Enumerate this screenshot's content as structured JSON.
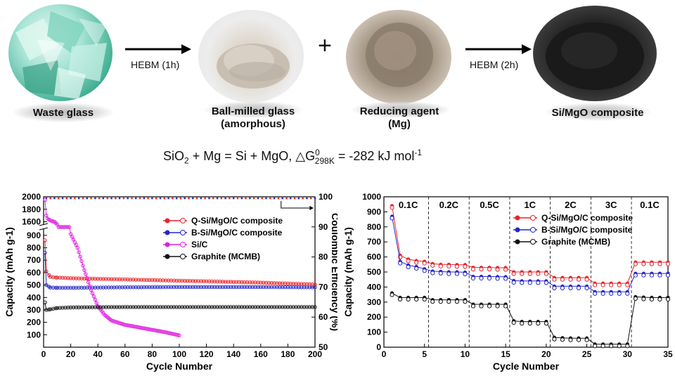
{
  "scheme": {
    "steps": [
      {
        "label_lines": [
          "Waste glass"
        ]
      },
      {
        "label_lines": [
          "Ball-milled glass",
          "(amorphous)"
        ]
      },
      {
        "label_lines": [
          "Reducing agent",
          "(Mg)"
        ]
      },
      {
        "label_lines": [
          "Si/MgO composite"
        ]
      }
    ],
    "arrow1_label": "HEBM (1h)",
    "plus_sign": "+",
    "arrow2_label": "HEBM (2h)"
  },
  "equation": {
    "part1": "SiO",
    "sub1": "2",
    "part2": " + Mg = Si + MgO, △G",
    "sup1": "0",
    "sub2": "298K",
    "part3": " = -282 kJ mol",
    "sup2": "-1"
  },
  "chart_data": [
    {
      "type": "scatter",
      "xlabel": "Cycle Number",
      "ylabel": "Capacity (mAh g-1)",
      "y2label": "Coulombic Efficiency (%)",
      "xlim": [
        0,
        200
      ],
      "xticks": [
        0,
        20,
        40,
        60,
        80,
        100,
        120,
        140,
        160,
        180,
        200
      ],
      "yticks": [
        100,
        200,
        300,
        400,
        500,
        600,
        700,
        800,
        900,
        1600,
        1800,
        2000
      ],
      "y_break": [
        950,
        1550
      ],
      "y2lim": [
        50,
        100
      ],
      "y2ticks": [
        50,
        60,
        70,
        80,
        90,
        100
      ],
      "legend_position": "middle-right",
      "series": [
        {
          "name": "Q-Si/MgO/C composite",
          "color": "#e8242a",
          "x": [
            1,
            2,
            5,
            10,
            20,
            40,
            60,
            80,
            100,
            120,
            140,
            160,
            180,
            200
          ],
          "values": [
            860,
            610,
            565,
            560,
            555,
            550,
            545,
            540,
            535,
            530,
            525,
            520,
            512,
            505
          ]
        },
        {
          "name": "B-Si/MgO/C composite",
          "color": "#2426c8",
          "x": [
            1,
            2,
            5,
            10,
            20,
            40,
            60,
            80,
            100,
            120,
            140,
            160,
            180,
            200
          ],
          "values": [
            760,
            500,
            480,
            478,
            478,
            480,
            482,
            483,
            484,
            484,
            484,
            484,
            483,
            482
          ]
        },
        {
          "name": "Si/C",
          "color": "#e020e0",
          "x": [
            1,
            2,
            3,
            5,
            8,
            10,
            14,
            18,
            20,
            25,
            30,
            35,
            40,
            45,
            50,
            60,
            70,
            80,
            90,
            100
          ],
          "values": [
            1950,
            1700,
            1650,
            1620,
            1600,
            1560,
            1500,
            1200,
            910,
            800,
            620,
            460,
            330,
            260,
            215,
            180,
            160,
            140,
            120,
            95
          ]
        },
        {
          "name": "Graphite (MCMB)",
          "color": "#111111",
          "x": [
            1,
            2,
            5,
            10,
            20,
            40,
            60,
            80,
            100,
            120,
            140,
            160,
            180,
            200
          ],
          "values": [
            360,
            300,
            305,
            315,
            320,
            322,
            323,
            323,
            323,
            323,
            323,
            323,
            323,
            323
          ]
        }
      ]
    },
    {
      "type": "line",
      "xlabel": "Cycle Number",
      "ylabel": "Capacity (mAh g-1)",
      "xlim": [
        0,
        35
      ],
      "ylim": [
        0,
        1000
      ],
      "xticks": [
        0,
        5,
        10,
        15,
        20,
        25,
        30,
        35
      ],
      "yticks": [
        0,
        100,
        200,
        300,
        400,
        500,
        600,
        700,
        800,
        900,
        1000
      ],
      "rate_labels": [
        "0.1C",
        "0.2C",
        "0.5C",
        "1C",
        "2C",
        "3C",
        "0.1C"
      ],
      "rate_boundaries": [
        5.5,
        10.5,
        15.5,
        20.5,
        25.5,
        30.5
      ],
      "legend_position": "top-right",
      "x": [
        1,
        2,
        3,
        4,
        5,
        6,
        7,
        8,
        9,
        10,
        11,
        12,
        13,
        14,
        15,
        16,
        17,
        18,
        19,
        20,
        21,
        22,
        23,
        24,
        25,
        26,
        27,
        28,
        29,
        30,
        31,
        32,
        33,
        34,
        35
      ],
      "series": [
        {
          "name": "Q-Si/MgO/C composite",
          "color": "#e8242a",
          "values": [
            940,
            610,
            585,
            575,
            570,
            555,
            550,
            550,
            548,
            548,
            530,
            530,
            530,
            528,
            528,
            500,
            500,
            500,
            500,
            500,
            462,
            462,
            462,
            462,
            462,
            425,
            425,
            425,
            425,
            425,
            565,
            565,
            565,
            565,
            565
          ]
        },
        {
          "name": "B-Si/MgO/C composite",
          "color": "#2426c8",
          "values": [
            870,
            570,
            545,
            535,
            520,
            505,
            503,
            500,
            500,
            498,
            470,
            470,
            470,
            468,
            468,
            442,
            440,
            440,
            440,
            440,
            405,
            405,
            405,
            405,
            405,
            368,
            368,
            368,
            368,
            368,
            490,
            490,
            490,
            490,
            490
          ]
        },
        {
          "name": "Graphite (MCMB)",
          "color": "#111111",
          "values": [
            360,
            330,
            330,
            330,
            330,
            315,
            315,
            315,
            315,
            315,
            285,
            285,
            285,
            285,
            285,
            175,
            170,
            170,
            170,
            170,
            65,
            62,
            60,
            60,
            60,
            20,
            20,
            20,
            20,
            20,
            335,
            332,
            330,
            330,
            330
          ]
        }
      ]
    }
  ]
}
